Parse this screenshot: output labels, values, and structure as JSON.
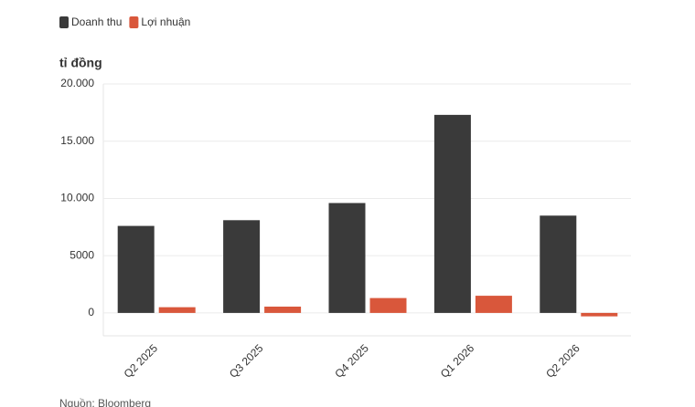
{
  "chart_data": {
    "type": "bar",
    "y_axis_label": "tỉ đồng",
    "source": "Nguồn: Bloomberg",
    "categories": [
      "Q2 2025",
      "Q3 2025",
      "Q4 2025",
      "Q1 2026",
      "Q2 2026"
    ],
    "series": [
      {
        "name": "Doanh thu",
        "color": "#3a3a3a",
        "values": [
          7600,
          8100,
          9600,
          17300,
          8500
        ]
      },
      {
        "name": "Lợi nhuận",
        "color": "#d9573b",
        "values": [
          500,
          550,
          1300,
          1500,
          -300
        ]
      }
    ],
    "ylim": [
      -2000,
      20000
    ],
    "yticks": [
      0,
      5000,
      {
        "value": 10000,
        "label": "10.000"
      },
      {
        "value": 15000,
        "label": "15.000"
      },
      {
        "value": 20000,
        "label": "20.000"
      }
    ],
    "grid": true
  }
}
